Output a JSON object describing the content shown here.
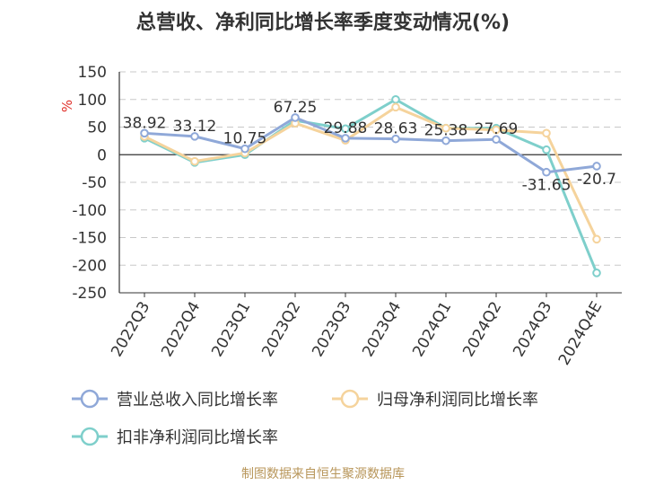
{
  "chart_data": {
    "type": "line",
    "title": "总营收、净利同比增长率季度变动情况(%)",
    "ylabel": "%",
    "xlabel": "",
    "categories": [
      "2022Q3",
      "2022Q4",
      "2023Q1",
      "2023Q2",
      "2023Q3",
      "2023Q4",
      "2024Q1",
      "2024Q2",
      "2024Q3",
      "2024Q4E"
    ],
    "ylim": [
      -250,
      150
    ],
    "yticks": [
      150,
      100,
      50,
      0,
      -50,
      -100,
      -150,
      -200,
      -250
    ],
    "grid": true,
    "legend_position": "bottom",
    "series": [
      {
        "name": "营业总收入同比增长率",
        "color": "#8fa8d8",
        "values": [
          38.92,
          33.12,
          10.75,
          67.25,
          29.88,
          28.63,
          25.38,
          27.69,
          -31.65,
          -20.7
        ],
        "labels": [
          "38.92",
          "33.12",
          "10.75",
          "67.25",
          "29.88",
          "28.63",
          "25.38",
          "27.69",
          "-31.65",
          "-20.7"
        ]
      },
      {
        "name": "归母净利润同比增长率",
        "color": "#f5d39c",
        "values": [
          33,
          -12,
          3,
          57,
          26,
          86,
          48,
          45,
          39,
          -153
        ]
      },
      {
        "name": "扣非净利润同比增长率",
        "color": "#7ecfcb",
        "values": [
          30,
          -14,
          0,
          62,
          47,
          100,
          48,
          48,
          9,
          -214
        ]
      }
    ]
  },
  "footer": {
    "source": "制图数据来自恒生聚源数据库"
  }
}
